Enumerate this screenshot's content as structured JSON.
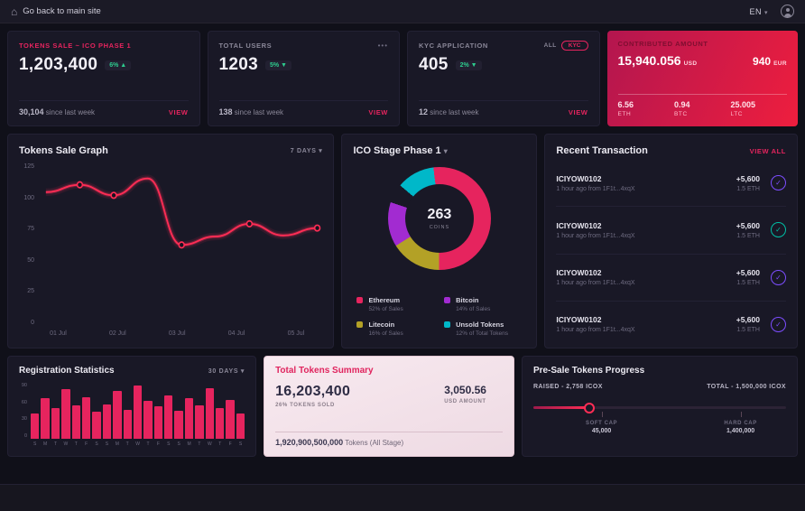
{
  "colors": {
    "accent": "#e6245e",
    "positive": "#2ecc8f",
    "card_bg": "#191826",
    "page_bg": "#101019"
  },
  "topbar": {
    "back_label": "Go back to main site",
    "home_icon": "⌂",
    "language": "EN",
    "caret": "▾"
  },
  "stat_cards": [
    {
      "label": "TOKENS SALE ~ ICO PHASE 1",
      "value": "1,203,400",
      "badge": "6% ▲",
      "sub_value": "30,104",
      "sub_label": "since last week",
      "action": "VIEW"
    },
    {
      "label": "TOTAL USERS",
      "value": "1203",
      "badge": "5% ▼",
      "sub_value": "138",
      "sub_label": "since last week",
      "action": "VIEW",
      "menu": "•••"
    },
    {
      "label": "KYC APPLICATION",
      "value": "405",
      "badge": "2% ▼",
      "sub_value": "12",
      "sub_label": "since last week",
      "action": "VIEW",
      "tag_all": "ALL",
      "tag_kyc": "KYC"
    }
  ],
  "contributed": {
    "label": "CONTRIBUTED AMOUNT",
    "usd_value": "15,940.056",
    "usd_unit": "USD",
    "eur_value": "940",
    "eur_unit": "EUR",
    "coins": [
      {
        "value": "6.56",
        "unit": "ETH"
      },
      {
        "value": "0.94",
        "unit": "BTC"
      },
      {
        "value": "25.005",
        "unit": "LTC"
      }
    ]
  },
  "tokens_graph": {
    "title": "Tokens Sale Graph",
    "range": "7 DAYS ▾"
  },
  "ico_stage": {
    "title": "ICO Stage Phase 1",
    "caret": "▾"
  },
  "recent": {
    "title": "Recent Transaction",
    "action": "VIEW ALL",
    "items": [
      {
        "id": "ICIYOW0102",
        "meta": "1 hour ago from 1F1t...4xqX",
        "amount": "+5,600",
        "eth": "1.5 ETH",
        "icon": "✓",
        "icon_color": "#7c4dff"
      },
      {
        "id": "ICIYOW0102",
        "meta": "1 hour ago from 1F1t...4xqX",
        "amount": "+5,600",
        "eth": "1.5 ETH",
        "icon": "✓",
        "icon_color": "#00bfa5"
      },
      {
        "id": "ICIYOW0102",
        "meta": "1 hour ago from 1F1t...4xqX",
        "amount": "+5,600",
        "eth": "1.5 ETH",
        "icon": "✓",
        "icon_color": "#7c4dff"
      },
      {
        "id": "ICIYOW0102",
        "meta": "1 hour ago from 1F1t...4xqX",
        "amount": "+5,600",
        "eth": "1.5 ETH",
        "icon": "✓",
        "icon_color": "#7c4dff"
      }
    ]
  },
  "registration": {
    "title": "Registration Statistics",
    "range": "30 DAYS ▾"
  },
  "summary": {
    "title": "Total Tokens Summary",
    "tokens_value": "16,203,400",
    "tokens_label": "26% TOKENS SOLD",
    "usd_value": "3,050.56",
    "usd_label": "USD AMOUNT",
    "total_value": "1,920,900,500,000",
    "total_label": "Tokens (All Stage)"
  },
  "presale": {
    "title": "Pre-Sale Tokens Progress",
    "raised": "RAISED - 2,758 ICOX",
    "total": "TOTAL - 1,500,000 ICOX",
    "knob_pct": 22,
    "soft_cap": {
      "label": "SOFT CAP",
      "value": "45,000",
      "pct": 27
    },
    "hard_cap": {
      "label": "HARD CAP",
      "value": "1,400,000",
      "pct": 82
    }
  },
  "chart_data": [
    {
      "type": "line",
      "title": "Tokens Sale Graph",
      "x_labels": [
        "01 Jul",
        "02 Jul",
        "03 Jul",
        "04 Jul",
        "05 Jul"
      ],
      "y_ticks": [
        "125",
        "100",
        "75",
        "50",
        "25",
        "0"
      ],
      "ylim": [
        0,
        125
      ],
      "values": [
        105,
        112,
        102,
        118,
        55,
        63,
        75,
        64,
        71
      ],
      "dot_indices": [
        1,
        2,
        4,
        6,
        8
      ],
      "color": "#ff2d55",
      "legend_position": "none",
      "grid": false
    },
    {
      "type": "pie",
      "title": "ICO Stage Phase 1",
      "center_value": "263",
      "center_label": "COINS",
      "slices": [
        {
          "label": "Ethereum",
          "pct": 52,
          "desc": "52% of Sales",
          "color": "#e6245e"
        },
        {
          "label": "Bitcoin",
          "pct": 14,
          "desc": "14% of Sales",
          "color": "#a22bd1"
        },
        {
          "label": "Litecoin",
          "pct": 16,
          "desc": "16% of Sales",
          "color": "#b3a126"
        },
        {
          "label": "Unsold Tokens",
          "pct": 12,
          "desc": "12% of Total Tokens",
          "color": "#00b8c9"
        }
      ],
      "draw_order": [
        3,
        0,
        2,
        1
      ],
      "gap_pct": 6,
      "start_angle": -50
    },
    {
      "type": "bar",
      "title": "Registration Statistics",
      "x_labels": [
        "S",
        "M",
        "T",
        "W",
        "T",
        "F",
        "S",
        "S",
        "M",
        "T",
        "W",
        "T",
        "F",
        "S",
        "S",
        "M",
        "T",
        "W",
        "T",
        "F",
        "S"
      ],
      "y_ticks": [
        "90",
        "60",
        "30",
        "0"
      ],
      "values": [
        45,
        72,
        55,
        88,
        60,
        75,
        48,
        62,
        85,
        52,
        95,
        68,
        58,
        78,
        50,
        73,
        60,
        90,
        55,
        70,
        45
      ],
      "color": "#e6245e",
      "ylim": [
        0,
        100
      ]
    }
  ]
}
